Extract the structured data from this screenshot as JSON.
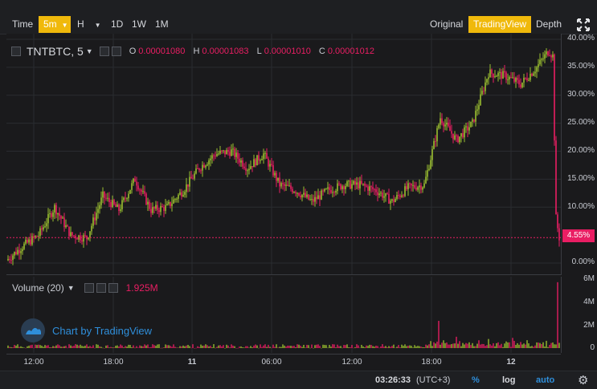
{
  "toolbar": {
    "time_label": "Time",
    "interval_selected": "5m",
    "hour_label": "H",
    "day_label": "1D",
    "week_label": "1W",
    "month_label": "1M",
    "view_original": "Original",
    "view_tradingview": "TradingView",
    "view_depth": "Depth"
  },
  "legend": {
    "symbol": "TNTBTC, 5",
    "o_key": "O",
    "o_val": "0.00001080",
    "h_key": "H",
    "h_val": "0.00001083",
    "l_key": "L",
    "l_val": "0.00001010",
    "c_key": "C",
    "c_val": "0.00001012"
  },
  "volume": {
    "label": "Volume (20)",
    "value": "1.925M"
  },
  "watermark": "Chart by TradingView",
  "price_scale": {
    "labels": [
      "40.00%",
      "35.00%",
      "30.00%",
      "25.00%",
      "20.00%",
      "15.00%",
      "10.00%",
      "0.00%"
    ],
    "current": "4.55%"
  },
  "volume_scale": {
    "labels": [
      "6M",
      "4M",
      "2M",
      "0"
    ]
  },
  "time_axis": [
    "12:00",
    "18:00",
    "11",
    "06:00",
    "12:00",
    "18:00",
    "12"
  ],
  "status": {
    "clock": "03:26:33",
    "tz": "(UTC+3)",
    "pct": "%",
    "log": "log",
    "auto": "auto"
  },
  "colors": {
    "up": "#9bbf2f",
    "down": "#e91e63",
    "accent": "#f0b90b",
    "link": "#2f8fdb"
  },
  "chart_data": {
    "type": "candlestick",
    "ylabel": "",
    "ylim": [
      -2,
      41
    ],
    "y_unit": "%",
    "current_value": 4.55,
    "path": [
      [
        0,
        0.5
      ],
      [
        20,
        3
      ],
      [
        40,
        5
      ],
      [
        60,
        10
      ],
      [
        80,
        5
      ],
      [
        100,
        4.5
      ],
      [
        120,
        12
      ],
      [
        140,
        9.5
      ],
      [
        160,
        15
      ],
      [
        180,
        9.5
      ],
      [
        200,
        10
      ],
      [
        220,
        13
      ],
      [
        240,
        17
      ],
      [
        260,
        19.5
      ],
      [
        280,
        20
      ],
      [
        300,
        17
      ],
      [
        320,
        19.5
      ],
      [
        340,
        14
      ],
      [
        360,
        13
      ],
      [
        380,
        11
      ],
      [
        400,
        13
      ],
      [
        420,
        14
      ],
      [
        440,
        14
      ],
      [
        460,
        13
      ],
      [
        480,
        11
      ],
      [
        500,
        13.5
      ],
      [
        520,
        14
      ],
      [
        530,
        20
      ],
      [
        540,
        26
      ],
      [
        560,
        22
      ],
      [
        580,
        25
      ],
      [
        600,
        34
      ],
      [
        620,
        33.5
      ],
      [
        640,
        32
      ],
      [
        660,
        35
      ],
      [
        675,
        38
      ],
      [
        680,
        37
      ],
      [
        684,
        8
      ],
      [
        688,
        4.55
      ]
    ],
    "volume_ylim": [
      0,
      6
    ],
    "volume_unit": "M",
    "volume_spikes": [
      [
        538,
        2.4
      ],
      [
        560,
        1.0
      ],
      [
        600,
        0.8
      ],
      [
        630,
        0.9
      ],
      [
        686,
        5.8
      ]
    ]
  }
}
